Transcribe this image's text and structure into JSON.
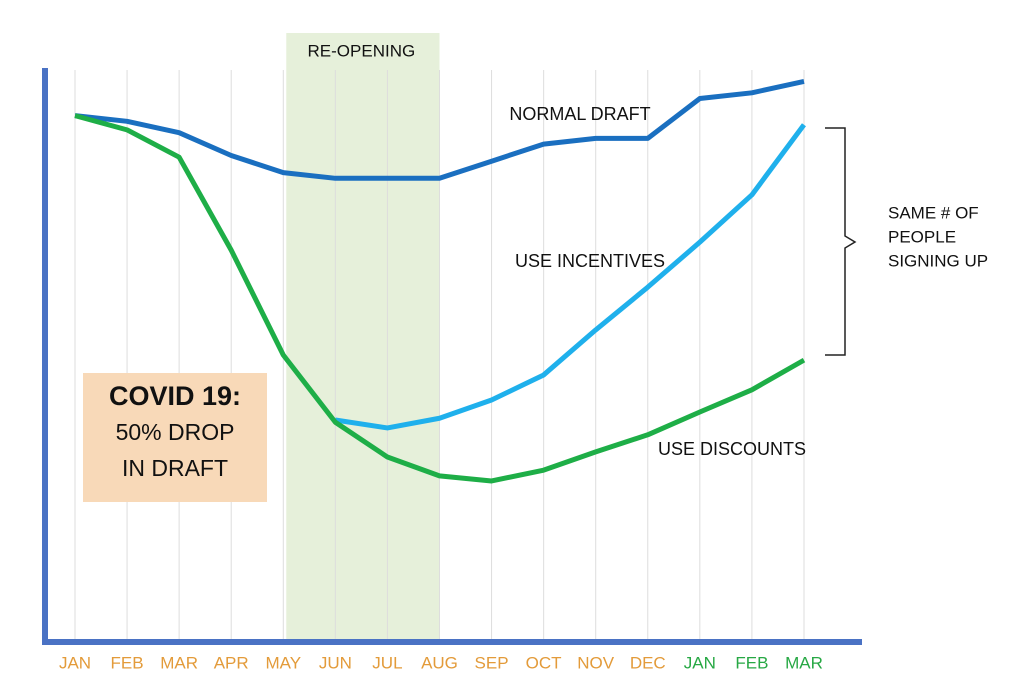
{
  "chart_data": {
    "type": "line",
    "highlight_label": "RE-OPENING",
    "categories": [
      "JAN",
      "FEB",
      "MAR",
      "APR",
      "MAY",
      "JUN",
      "JUL",
      "AUG",
      "SEP",
      "OCT",
      "NOV",
      "DEC",
      "JAN",
      "FEB",
      "MAR"
    ],
    "category_colors": [
      "#e39b3a",
      "#e39b3a",
      "#e39b3a",
      "#e39b3a",
      "#e39b3a",
      "#e39b3a",
      "#e39b3a",
      "#e39b3a",
      "#e39b3a",
      "#e39b3a",
      "#e39b3a",
      "#e39b3a",
      "#27a844",
      "#27a844",
      "#27a844"
    ],
    "ylim": [
      0,
      100
    ],
    "grid": true,
    "series": [
      {
        "name": "NORMAL DRAFT",
        "color": "#1a6fc0",
        "values": [
          92,
          91,
          89,
          85,
          82,
          81,
          81,
          81,
          84,
          87,
          88,
          88,
          95,
          96,
          98
        ]
      },
      {
        "name": "USE INCENTIVES",
        "color": "#1fb0ec",
        "values": [
          null,
          null,
          null,
          null,
          null,
          38.6,
          37.2,
          38.9,
          42.1,
          46.5,
          54.4,
          61.9,
          69.8,
          78.1,
          90.4
        ]
      },
      {
        "name": "USE DISCOUNTS",
        "color": "#1eae47",
        "values": [
          92,
          89.5,
          84.7,
          68.4,
          50,
          38.2,
          32.1,
          28.8,
          27.9,
          29.8,
          33,
          36,
          40,
          43.9,
          49.1
        ]
      }
    ],
    "covid_box": [
      "COVID 19:",
      "50% DROP",
      "IN DRAFT"
    ],
    "bracket_note": [
      "SAME # OF",
      "PEOPLE",
      "SIGNING UP"
    ]
  }
}
